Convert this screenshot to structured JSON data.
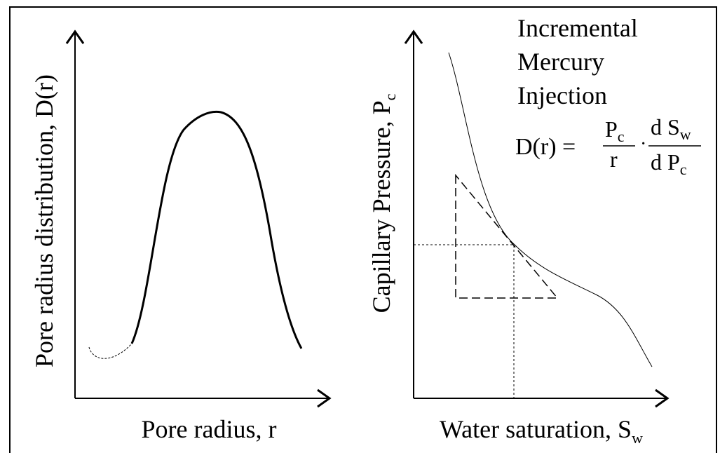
{
  "left_panel": {
    "y_label": "Pore radius distribution, D(r)",
    "x_label": "Pore radius, r"
  },
  "right_panel": {
    "y_label": {
      "text": "Capillary Pressure, P",
      "subscript": "c"
    },
    "x_label": {
      "text": "Water saturation, S",
      "subscript": "w"
    },
    "title_lines": [
      "Incremental",
      "Mercury",
      "Injection"
    ],
    "formula": {
      "lhs": "D(r) =",
      "num1": "P",
      "num1_sub": "c",
      "den1": "r",
      "dot": "·",
      "num2": "d S",
      "num2_sub": "w",
      "den2": "d P",
      "den2_sub": "c"
    }
  }
}
